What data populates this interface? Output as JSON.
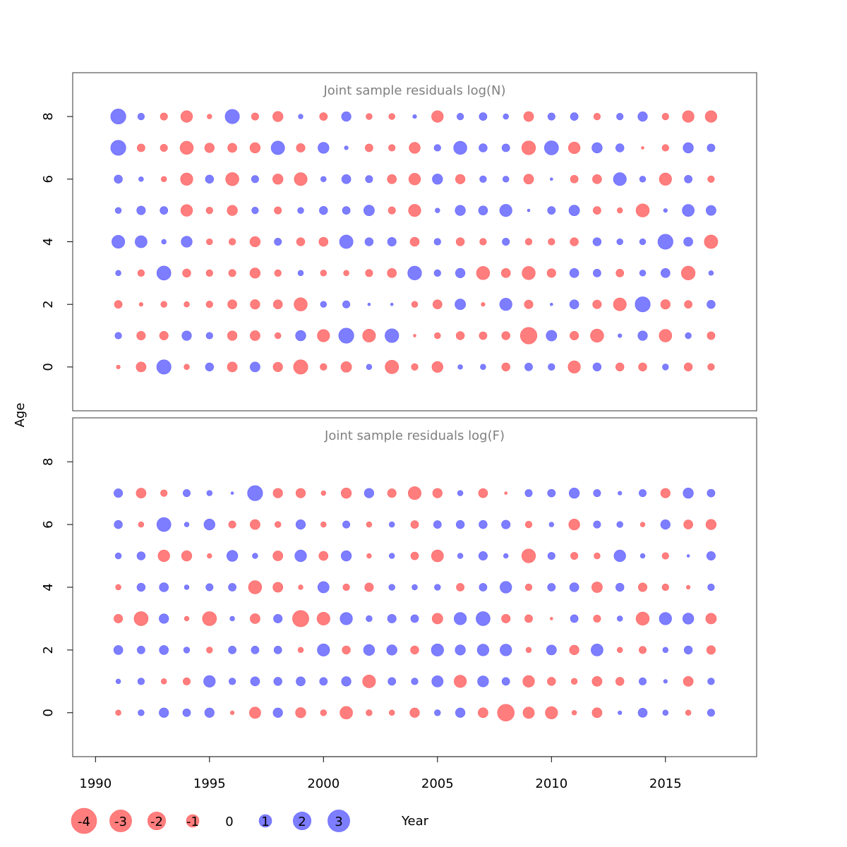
{
  "chart_data": {
    "type": "scatter",
    "ylabel": "Age",
    "xlabel": "Year",
    "x_ticks": [
      1990,
      1995,
      2000,
      2005,
      2010,
      2015
    ],
    "xlim": [
      1989,
      2019
    ],
    "y_ticks": [
      0,
      2,
      4,
      6,
      8
    ],
    "ylim": [
      -1.4,
      9.4
    ],
    "colors": {
      "negative": "#ff6666",
      "positive": "#6666ff"
    },
    "years": [
      1991,
      1992,
      1993,
      1994,
      1995,
      1996,
      1997,
      1998,
      1999,
      2000,
      2001,
      2002,
      2003,
      2004,
      2005,
      2006,
      2007,
      2008,
      2009,
      2010,
      2011,
      2012,
      2013,
      2014,
      2015,
      2016,
      2017
    ],
    "legend": [
      {
        "label": "-4",
        "value": -4
      },
      {
        "label": "-3",
        "value": -3
      },
      {
        "label": "-2",
        "value": -2
      },
      {
        "label": "-1",
        "value": -1
      },
      {
        "label": "0",
        "value": 0
      },
      {
        "label": "1",
        "value": 1
      },
      {
        "label": "2",
        "value": 2
      },
      {
        "label": "3",
        "value": 3
      }
    ],
    "panels": [
      {
        "title": "Joint sample residuals log(N)",
        "ages": [
          0,
          1,
          2,
          3,
          4,
          5,
          6,
          7,
          8
        ],
        "residuals": {
          "8": [
            3,
            0.6,
            -0.7,
            -1.8,
            -0.3,
            2.7,
            -0.7,
            -1.4,
            0.3,
            -0.8,
            1.2,
            -0.5,
            -0.5,
            0.2,
            -1.8,
            0.6,
            0.8,
            0.4,
            -1.3,
            0.7,
            0.8,
            -0.6,
            0.6,
            1.2,
            -0.6,
            -1.8,
            -1.8
          ],
          "7": [
            3,
            -0.8,
            -0.7,
            -2.3,
            -1.2,
            -1.1,
            -1.4,
            2.4,
            -1.0,
            1.6,
            0.2,
            -0.8,
            -0.6,
            -1.6,
            0.6,
            2.3,
            0.9,
            0.8,
            -2.5,
            2.6,
            -1.8,
            1.4,
            0.9,
            -0.1,
            -0.6,
            1.4,
            0.8
          ],
          "6": [
            0.9,
            0.3,
            -0.4,
            -2.0,
            0.9,
            -2.3,
            0.7,
            -1.4,
            -2.2,
            0.4,
            1.1,
            0.7,
            -1.1,
            -1.8,
            1.4,
            -1.2,
            0.6,
            0.5,
            -1.3,
            0.1,
            -0.8,
            -1.1,
            2.2,
            0.5,
            -2.0,
            0.8,
            -0.6
          ],
          "5": [
            0.5,
            1.0,
            0.8,
            -1.8,
            -0.6,
            -1.4,
            0.6,
            -0.7,
            0.5,
            0.9,
            0.8,
            1.5,
            -0.7,
            -2.0,
            0.3,
            1.4,
            1.1,
            2.0,
            0.1,
            0.8,
            1.5,
            -0.8,
            -0.4,
            -2.3,
            0.2,
            1.9,
            1.3
          ],
          "4": [
            2.2,
            1.9,
            0.3,
            1.6,
            -0.5,
            -0.6,
            -1.4,
            0.7,
            -0.9,
            -1.1,
            2.4,
            0.9,
            1.0,
            -1.1,
            0.6,
            -0.9,
            -0.6,
            0.7,
            -0.6,
            -0.6,
            -0.9,
            0.9,
            0.5,
            0.5,
            3,
            1.1,
            -2.4
          ],
          "3": [
            0.4,
            -0.6,
            2.6,
            -0.9,
            -0.6,
            -0.7,
            -1.4,
            -0.6,
            0.4,
            -0.5,
            -0.4,
            -0.7,
            -1.1,
            2.5,
            0.6,
            1.2,
            -2.3,
            -1.1,
            -2.3,
            -1.0,
            1.1,
            0.8,
            -0.8,
            0.5,
            1.1,
            -2.5,
            0.3
          ],
          "2": [
            -0.8,
            -0.2,
            -0.5,
            -0.4,
            -0.6,
            -1.1,
            -1.2,
            -1.1,
            -2.3,
            0.5,
            0.7,
            0.1,
            0.1,
            -0.5,
            -1.1,
            1.5,
            -0.2,
            2.0,
            -1.0,
            0.1,
            1.1,
            -1.0,
            -2.2,
            3,
            -1.2,
            -0.8,
            0.9
          ],
          "1": [
            0.6,
            -1.0,
            -1.0,
            1.2,
            0.6,
            -1.2,
            -1.3,
            -0.5,
            1.4,
            -2.0,
            3,
            -2.2,
            2.5,
            -0.1,
            -0.5,
            -0.9,
            -0.8,
            -0.9,
            -3.6,
            1.5,
            -1.0,
            -2.3,
            0.2,
            1.2,
            -2.1,
            0.5,
            -0.8
          ],
          "0": [
            -0.2,
            -1.3,
            2.7,
            -0.4,
            0.9,
            -1.3,
            1.3,
            -1.2,
            -2.7,
            -0.6,
            -1.5,
            0.4,
            -2.4,
            -0.6,
            -1.6,
            0.3,
            0.4,
            -0.9,
            0.8,
            0.6,
            -2.0,
            0.9,
            -0.9,
            -0.9,
            0.5,
            -0.9,
            -0.6
          ]
        }
      },
      {
        "title": "Joint sample residuals log(F)",
        "ages": [
          0,
          1,
          2,
          3,
          4,
          5,
          6,
          7
        ],
        "residuals": {
          "7": [
            1.0,
            -1.3,
            -0.6,
            0.7,
            0.4,
            0.1,
            3,
            -1.2,
            -1.2,
            -0.3,
            -1.4,
            1.2,
            -1.0,
            -2.2,
            -1.2,
            0.4,
            -1.1,
            -0.1,
            0.7,
            0.8,
            1.4,
            0.7,
            0.2,
            0.7,
            -1.2,
            1.4,
            0.8
          ],
          "6": [
            0.9,
            -0.4,
            2.6,
            0.3,
            1.6,
            -0.7,
            -1.3,
            -0.5,
            1.2,
            -0.4,
            0.7,
            -0.4,
            0.4,
            -0.8,
            0.8,
            0.9,
            0.9,
            1.0,
            -0.6,
            0.3,
            -1.6,
            0.7,
            0.5,
            -0.3,
            1.2,
            -1.1,
            -1.4
          ],
          "5": [
            0.5,
            0.9,
            -1.8,
            -1.4,
            -0.3,
            1.6,
            0.4,
            -1.3,
            1.8,
            -1.1,
            1.4,
            -0.3,
            0.4,
            -0.8,
            -1.9,
            0.4,
            1.0,
            0.3,
            -2.5,
            0.7,
            -0.7,
            -0.5,
            1.8,
            0.3,
            -0.6,
            0.1,
            1.0
          ],
          "4": [
            -0.4,
            0.9,
            1.1,
            0.3,
            0.7,
            0.8,
            -2.3,
            -1.3,
            -0.3,
            1.7,
            -0.6,
            -1.0,
            0.5,
            0.4,
            0.5,
            -0.8,
            0.8,
            1.8,
            -0.6,
            0.8,
            1.1,
            -1.5,
            0.9,
            -1.0,
            -0.6,
            -0.2,
            0.6
          ],
          "3": [
            -1.0,
            -2.6,
            1.2,
            -0.3,
            -2.6,
            0.3,
            -1.3,
            1.0,
            -3.5,
            -2.2,
            2.0,
            0.5,
            1.0,
            0.8,
            -1.5,
            2.0,
            2.6,
            -1.0,
            -0.8,
            -0.1,
            0.8,
            -0.7,
            0.4,
            -2.3,
            2.0,
            1.6,
            -1.5
          ],
          "2": [
            1.1,
            0.8,
            1.1,
            0.5,
            -0.5,
            0.8,
            0.8,
            0.8,
            -0.4,
            2.0,
            -0.9,
            1.6,
            1.4,
            -0.9,
            2.0,
            1.4,
            1.8,
            1.8,
            -0.4,
            1.3,
            -1.2,
            1.9,
            -0.4,
            -0.7,
            0.4,
            0.9,
            -1.0
          ],
          "1": [
            0.3,
            0.6,
            -0.4,
            -0.7,
            1.8,
            0.6,
            1.1,
            0.9,
            1.1,
            0.8,
            1.2,
            -2.2,
            0.8,
            0.6,
            1.7,
            -2.0,
            1.6,
            0.8,
            -1.8,
            -0.9,
            -0.5,
            -1.3,
            -0.9,
            0.7,
            0.2,
            -1.3,
            0.6
          ],
          "0": [
            -0.4,
            0.5,
            1.2,
            0.8,
            1.2,
            -0.2,
            -1.7,
            1.2,
            -1.4,
            -0.5,
            -2.1,
            -0.5,
            -0.4,
            -1.2,
            0.5,
            1.2,
            -1.3,
            -3.7,
            -1.7,
            -2.0,
            -0.3,
            -1.3,
            0.2,
            1.1,
            0.4,
            -0.4,
            0.7
          ]
        }
      }
    ]
  }
}
